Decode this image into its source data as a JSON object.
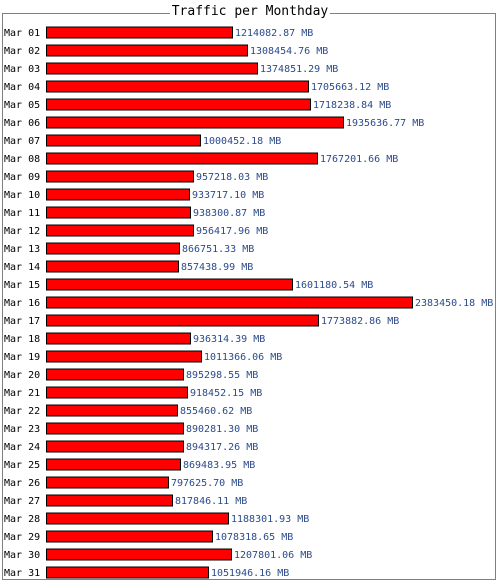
{
  "chart_data": {
    "type": "bar",
    "orientation": "horizontal",
    "title": "Traffic per Monthday",
    "unit": "MB",
    "categories": [
      "Mar 01",
      "Mar 02",
      "Mar 03",
      "Mar 04",
      "Mar 05",
      "Mar 06",
      "Mar 07",
      "Mar 08",
      "Mar 09",
      "Mar 10",
      "Mar 11",
      "Mar 12",
      "Mar 13",
      "Mar 14",
      "Mar 15",
      "Mar 16",
      "Mar 17",
      "Mar 18",
      "Mar 19",
      "Mar 20",
      "Mar 21",
      "Mar 22",
      "Mar 23",
      "Mar 24",
      "Mar 25",
      "Mar 26",
      "Mar 27",
      "Mar 28",
      "Mar 29",
      "Mar 30",
      "Mar 31"
    ],
    "values": [
      1214082.87,
      1308454.76,
      1374851.29,
      1705663.12,
      1718238.84,
      1935636.77,
      1000452.18,
      1767201.66,
      957218.03,
      933717.1,
      938300.87,
      956417.96,
      866751.33,
      857438.99,
      1601180.54,
      2383450.18,
      1773882.86,
      936314.39,
      1011366.06,
      895298.55,
      918452.15,
      855460.62,
      890281.3,
      894317.26,
      869483.95,
      797625.7,
      817846.11,
      1188301.93,
      1078318.65,
      1207801.06,
      1051946.16
    ],
    "value_labels": [
      "1214082.87 MB",
      "1308454.76 MB",
      "1374851.29 MB",
      "1705663.12 MB",
      "1718238.84 MB",
      "1935636.77 MB",
      "1000452.18 MB",
      "1767201.66 MB",
      "957218.03 MB",
      "933717.10 MB",
      "938300.87 MB",
      "956417.96 MB",
      "866751.33 MB",
      "857438.99 MB",
      "1601180.54 MB",
      "2383450.18 MB",
      "1773882.86 MB",
      "936314.39 MB",
      "1011366.06 MB",
      "895298.55 MB",
      "918452.15 MB",
      "855460.62 MB",
      "890281.30 MB",
      "894317.26 MB",
      "869483.95 MB",
      "797625.70 MB",
      "817846.11 MB",
      "1188301.93 MB",
      "1078318.65 MB",
      "1207801.06 MB",
      "1051946.16 MB"
    ],
    "bar_color": "#ff0000",
    "bar_border_color": "#000000",
    "value_label_color": "#2a4a8c",
    "grid": false,
    "legend": "none"
  }
}
